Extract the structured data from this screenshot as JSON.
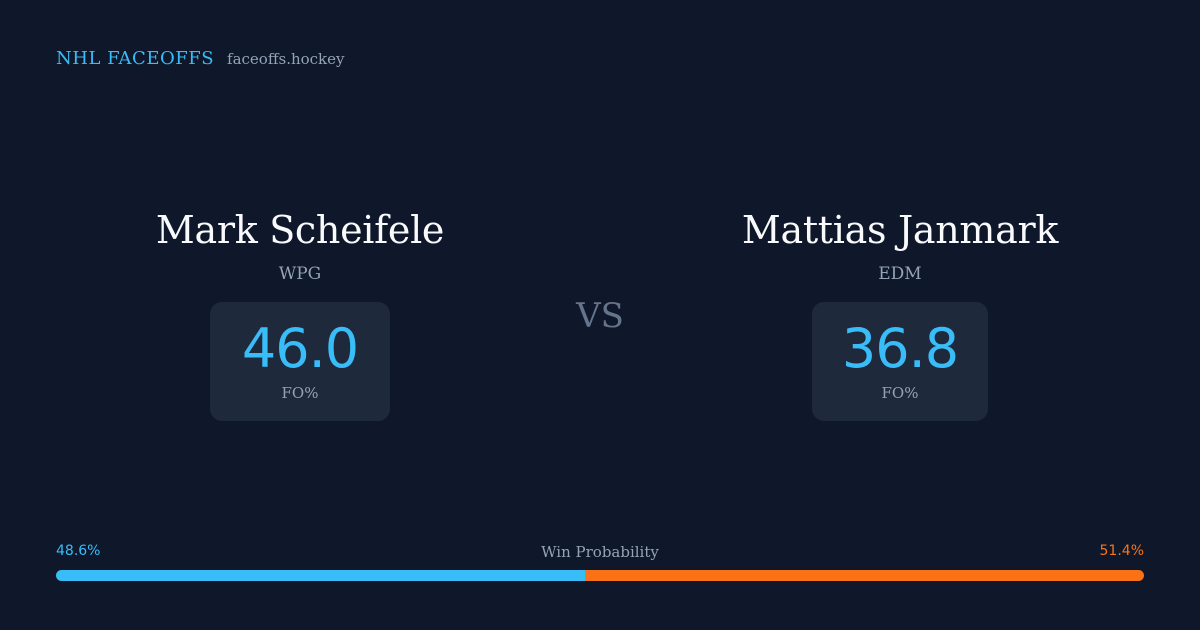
{
  "brand": {
    "name": "NHL FACEOFFS",
    "domain": "faceoffs.hockey"
  },
  "players": [
    {
      "name": "Mark Scheifele",
      "team": "WPG",
      "stat_value": "46.0",
      "stat_label": "FO%"
    },
    {
      "name": "Mattias Janmark",
      "team": "EDM",
      "stat_value": "36.8",
      "stat_label": "FO%"
    }
  ],
  "versus_label": "VS",
  "win_probability": {
    "title": "Win Probability",
    "left_label": "48.6%",
    "right_label": "51.4%",
    "left_value": 48.6,
    "right_value": 51.4
  },
  "colors": {
    "background": "#0f172a",
    "card": "#1e293b",
    "accent_blue": "#38bdf8",
    "accent_orange": "#f97316",
    "muted": "#94a3b8"
  }
}
